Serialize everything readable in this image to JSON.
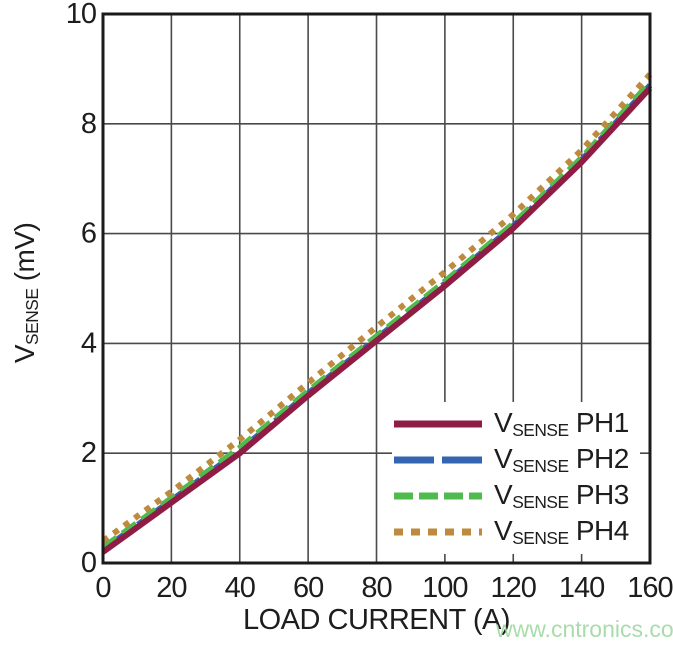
{
  "style": {
    "background": "#ffffff",
    "text_color": "#1d1d1d",
    "grid_color": "#4a4a4a",
    "border_color": "#1a1a1a"
  },
  "watermark": {
    "text": "www.cntronics.com",
    "color": "#a9dcab"
  },
  "chart_data": {
    "type": "line",
    "title": "",
    "xlabel": "LOAD CURRENT (A)",
    "ylabel": {
      "prefix": "V",
      "sub": "SENSE",
      "suffix": " (mV)"
    },
    "xlim": [
      0,
      160
    ],
    "ylim": [
      0,
      10
    ],
    "x_ticks": [
      0,
      20,
      40,
      60,
      80,
      100,
      120,
      140,
      160
    ],
    "y_ticks": [
      0,
      2,
      4,
      6,
      8,
      10
    ],
    "grid": true,
    "legend_position": "inside bottom-right",
    "x": [
      0,
      20,
      40,
      60,
      80,
      100,
      120,
      140,
      160
    ],
    "series": [
      {
        "label_prefix": "V",
        "label_sub": "SENSE",
        "label_suffix": " PH1",
        "color": "#8e1c45",
        "dash": "solid",
        "values": [
          0.2,
          1.1,
          2.0,
          3.05,
          4.05,
          5.05,
          6.1,
          7.3,
          8.65
        ]
      },
      {
        "label_prefix": "V",
        "label_sub": "SENSE",
        "label_suffix": " PH2",
        "color": "#3465b0",
        "dash": "long-dash",
        "values": [
          0.24,
          1.14,
          2.05,
          3.09,
          4.09,
          5.09,
          6.14,
          7.34,
          8.7
        ]
      },
      {
        "label_prefix": "V",
        "label_sub": "SENSE",
        "label_suffix": " PH3",
        "color": "#4fbb4f",
        "dash": "dash",
        "values": [
          0.28,
          1.18,
          2.1,
          3.13,
          4.13,
          5.13,
          6.18,
          7.38,
          8.75
        ]
      },
      {
        "label_prefix": "V",
        "label_sub": "SENSE",
        "label_suffix": " PH4",
        "color": "#be8a3e",
        "dash": "dot",
        "values": [
          0.4,
          1.3,
          2.25,
          3.28,
          4.3,
          5.3,
          6.35,
          7.52,
          8.9
        ]
      }
    ]
  }
}
